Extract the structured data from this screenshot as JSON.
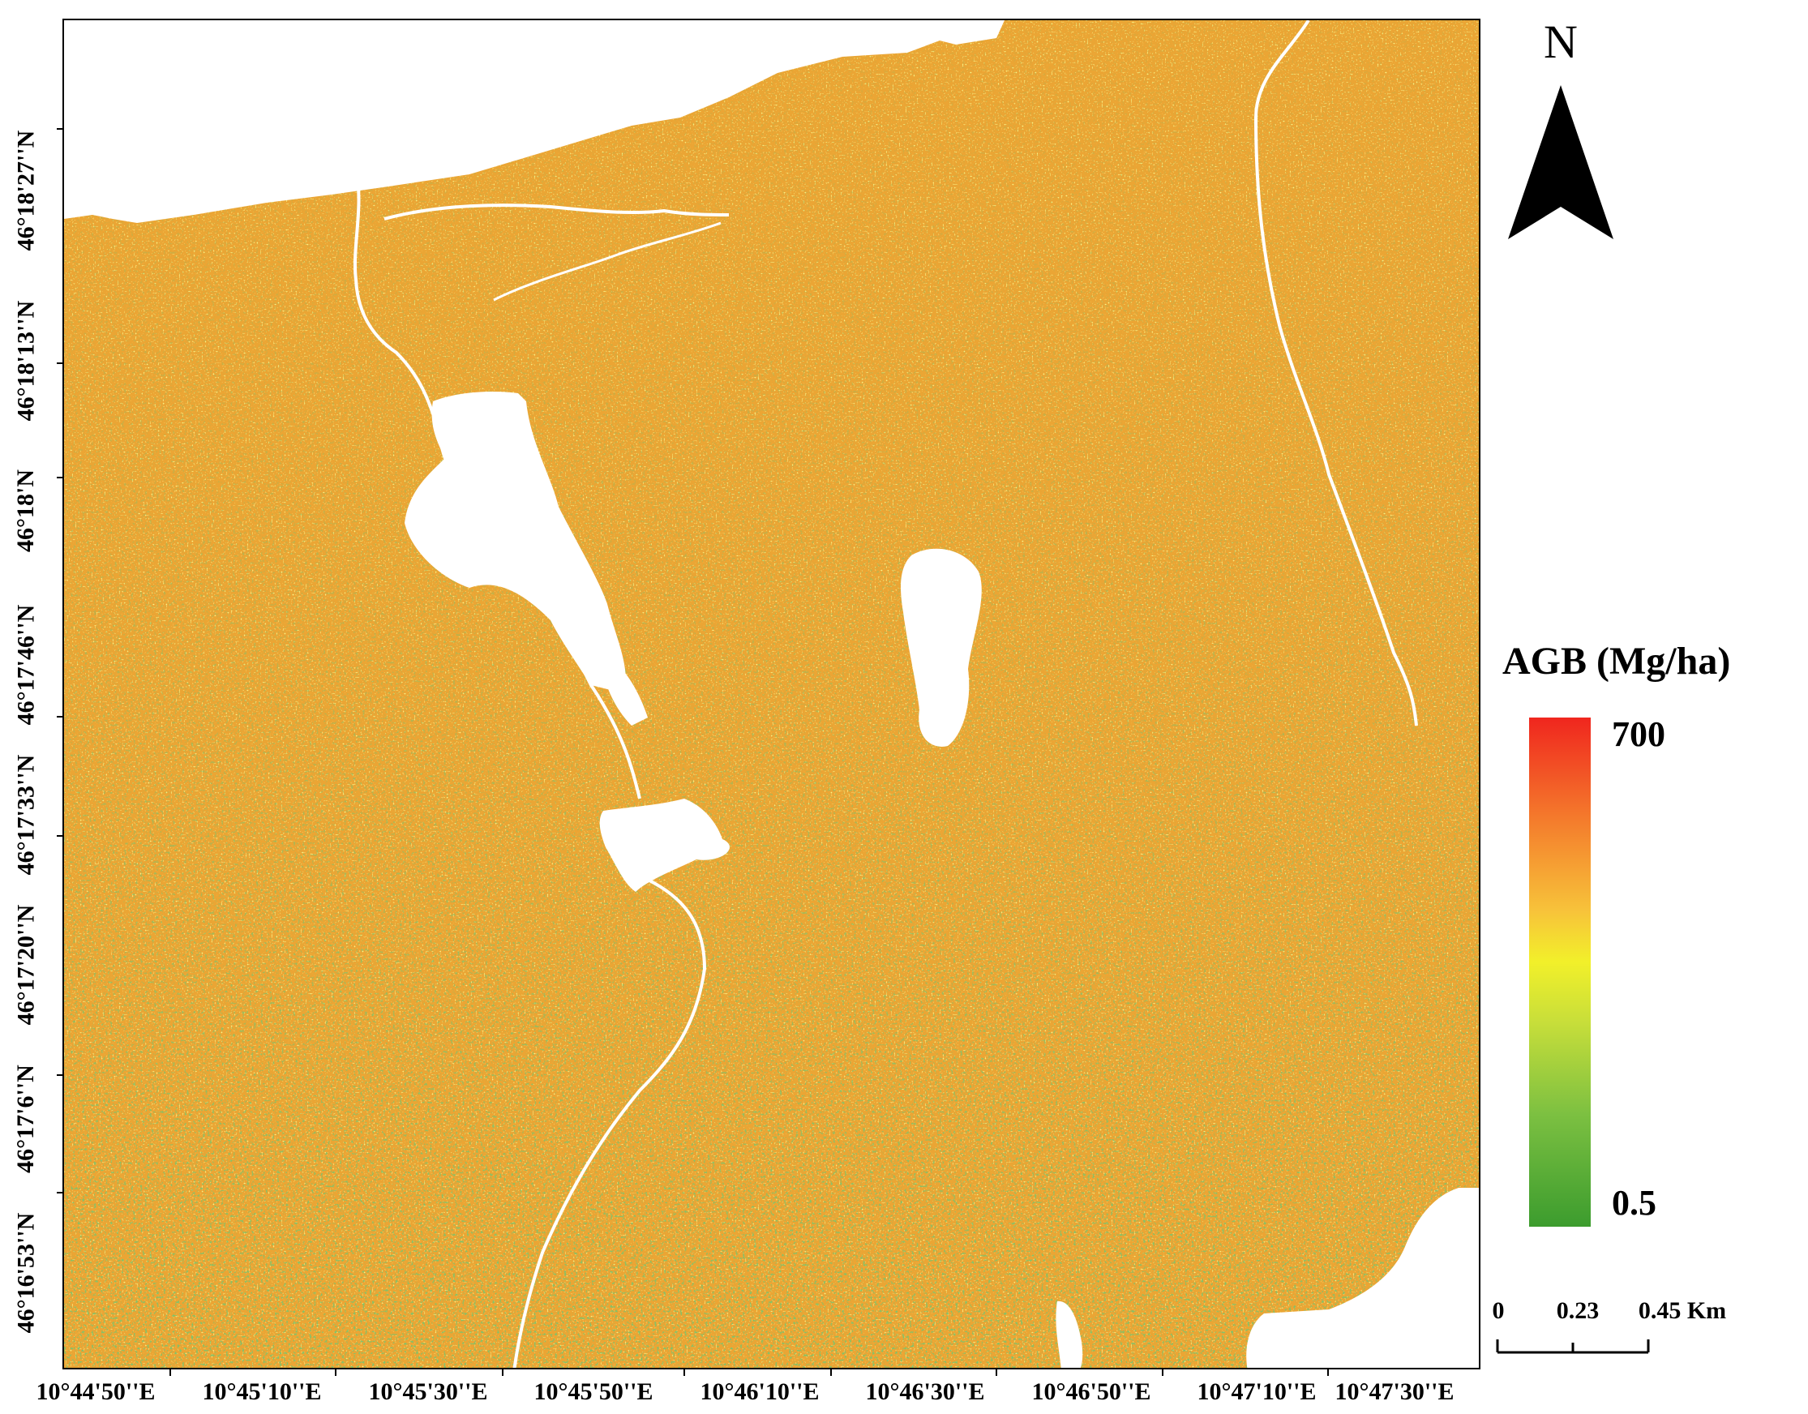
{
  "map": {
    "colormap": [
      "#3c9c2e",
      "#7cc041",
      "#c7de3a",
      "#f2f02a",
      "#f7c33a",
      "#f47b2c",
      "#f0261e"
    ],
    "nodata_color": "#ffffff"
  },
  "latitude_labels": [
    "46°18'27''N",
    "46°18'13''N",
    "46°18'N",
    "46°17'46''N",
    "46°17'33''N",
    "46°17'20''N",
    "46°17'6''N",
    "46°16'53''N"
  ],
  "longitude_labels": [
    "10°44'50''E",
    "10°45'10''E",
    "10°45'30''E",
    "10°45'50''E",
    "10°46'10''E",
    "10°46'30''E",
    "10°46'50''E",
    "10°47'10''E",
    "10°47'30''E"
  ],
  "north_arrow": {
    "label": "N"
  },
  "legend": {
    "title": "AGB (Mg/ha)",
    "max_label": "700",
    "min_label": "0.5",
    "max_value": 700,
    "min_value": 0.5
  },
  "scale_bar": {
    "labels": [
      "0",
      "0.23",
      "0.45 Km"
    ]
  }
}
